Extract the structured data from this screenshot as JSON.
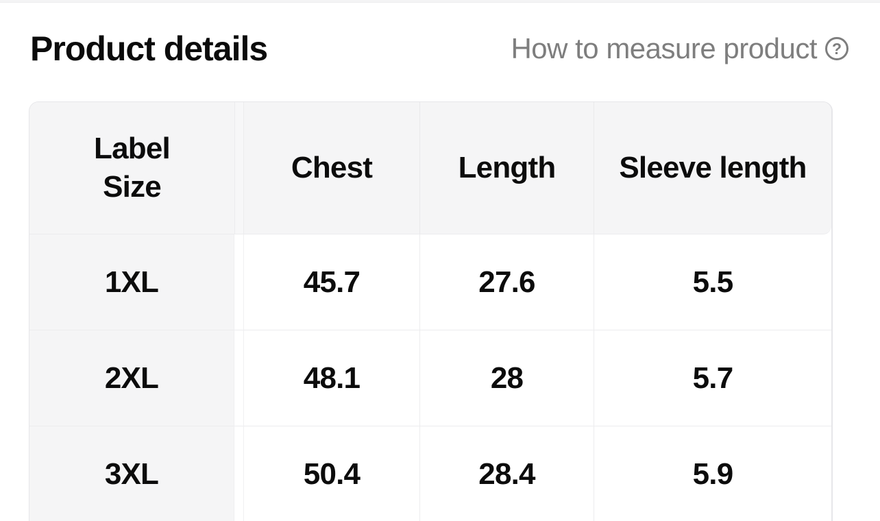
{
  "page": {
    "title": "Product details",
    "help": {
      "label": "How to measure product",
      "icon": "question-circle-icon",
      "icon_glyph": "?"
    }
  },
  "size_table": {
    "header": {
      "size_col_line1": "Label",
      "size_col_line2": "Size",
      "columns": [
        "Chest",
        "Length",
        "Sleeve length"
      ]
    },
    "rows": [
      {
        "size": "1XL",
        "chest": "45.7",
        "length": "27.6",
        "sleeve_length": "5.5"
      },
      {
        "size": "2XL",
        "chest": "48.1",
        "length": "28",
        "sleeve_length": "5.7"
      },
      {
        "size": "3XL",
        "chest": "50.4",
        "length": "28.4",
        "sleeve_length": "5.9"
      }
    ]
  },
  "colors": {
    "header_bg": "#f5f5f6",
    "grid_border": "#ececee",
    "text": "#0c0c0c",
    "muted_text": "#7e7e7e",
    "page_bg": "#ffffff"
  }
}
